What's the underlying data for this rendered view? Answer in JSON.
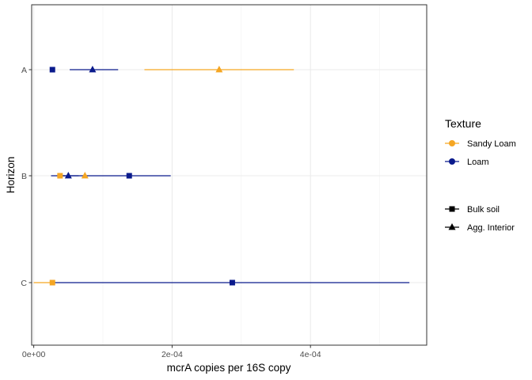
{
  "chart_data": {
    "type": "scatter",
    "orientation": "horizontal",
    "xlabel": "mcrA copies per 16S copy",
    "ylabel": "Horizon",
    "xlim": [
      -3e-06,
      0.000568
    ],
    "x_ticks": [
      0,
      0.0002,
      0.0004
    ],
    "x_tick_labels": [
      "0e+00",
      "2e-04",
      "4e-04"
    ],
    "categories": [
      "A",
      "B",
      "C"
    ],
    "grid": true,
    "legend_position": "right",
    "texture_legend": {
      "title": "Texture",
      "entries": [
        {
          "name": "Sandy Loam",
          "color": "#F5A623"
        },
        {
          "name": "Loam",
          "color": "#0A1A8C"
        }
      ]
    },
    "shape_legend": {
      "entries": [
        {
          "name": "Bulk soil",
          "shape": "square"
        },
        {
          "name": "Agg. Interior",
          "shape": "triangle"
        }
      ]
    },
    "series": [
      {
        "texture": "Sandy Loam",
        "type": "Bulk soil",
        "points": [
          {
            "y": "A",
            "x": null,
            "lo": null,
            "hi": null
          },
          {
            "y": "B",
            "x": 3.8e-05,
            "lo": 3.3e-05,
            "hi": 4.5e-05
          },
          {
            "y": "C",
            "x": 2.7e-05,
            "lo": 0.0,
            "hi": 3.1e-05
          }
        ]
      },
      {
        "texture": "Sandy Loam",
        "type": "Agg. Interior",
        "points": [
          {
            "y": "A",
            "x": 0.000268,
            "lo": 0.00016,
            "hi": 0.000376
          },
          {
            "y": "B",
            "x": 7.4e-05,
            "lo": 7e-05,
            "hi": 7.8e-05
          },
          {
            "y": "C",
            "x": null,
            "lo": null,
            "hi": null
          }
        ]
      },
      {
        "texture": "Loam",
        "type": "Bulk soil",
        "points": [
          {
            "y": "A",
            "x": 2.7e-05,
            "lo": null,
            "hi": null
          },
          {
            "y": "B",
            "x": 0.000138,
            "lo": 2.5e-05,
            "hi": 0.000198
          },
          {
            "y": "C",
            "x": 0.000287,
            "lo": 2.8e-05,
            "hi": 0.000543
          }
        ]
      },
      {
        "texture": "Loam",
        "type": "Agg. Interior",
        "points": [
          {
            "y": "A",
            "x": 8.5e-05,
            "lo": 5.2e-05,
            "hi": 0.000122
          },
          {
            "y": "B",
            "x": 5e-05,
            "lo": 3.5e-05,
            "hi": 6.5e-05
          },
          {
            "y": "C",
            "x": null,
            "lo": null,
            "hi": null
          }
        ]
      }
    ]
  }
}
